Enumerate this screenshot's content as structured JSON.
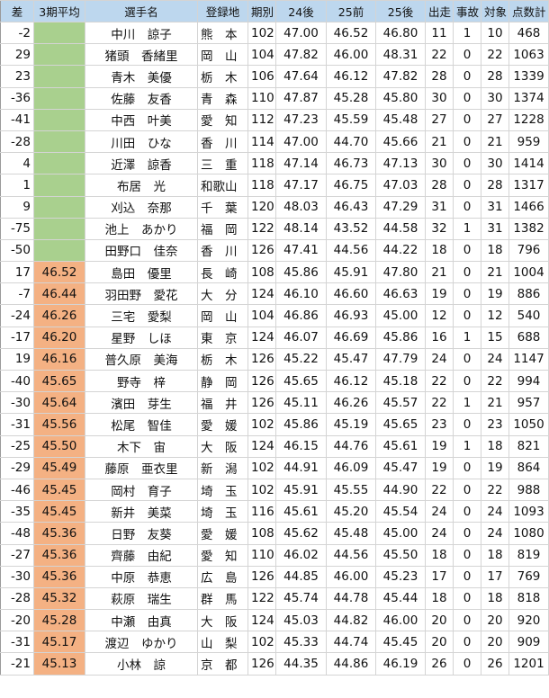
{
  "colors": {
    "header_bg": "#bdd7ee",
    "avg_empty": "#a9d08e",
    "avg_filled": "#f4b183"
  },
  "headers": [
    "差",
    "3期平均",
    "選手名",
    "登録地",
    "期別",
    "24後",
    "25前",
    "25後",
    "出走",
    "事故",
    "対象",
    "点数計"
  ],
  "rows": [
    [
      "-2",
      "",
      "中川　諒子",
      "熊　本",
      "102",
      "47.00",
      "46.52",
      "46.80",
      "11",
      "1",
      "10",
      "468"
    ],
    [
      "29",
      "",
      "猪頭　香緒里",
      "岡　山",
      "104",
      "47.82",
      "46.00",
      "48.31",
      "22",
      "0",
      "22",
      "1063"
    ],
    [
      "23",
      "",
      "青木　美優",
      "栃　木",
      "106",
      "47.64",
      "46.12",
      "47.82",
      "28",
      "0",
      "28",
      "1339"
    ],
    [
      "-36",
      "",
      "佐藤　友香",
      "青　森",
      "110",
      "47.87",
      "45.28",
      "45.80",
      "30",
      "0",
      "30",
      "1374"
    ],
    [
      "-41",
      "",
      "中西　叶美",
      "愛　知",
      "112",
      "47.23",
      "45.59",
      "45.48",
      "27",
      "0",
      "27",
      "1228"
    ],
    [
      "-28",
      "",
      "川田　ひな",
      "香　川",
      "114",
      "47.00",
      "44.70",
      "45.66",
      "21",
      "0",
      "21",
      "959"
    ],
    [
      "4",
      "",
      "近澤　諒香",
      "三　重",
      "118",
      "47.14",
      "46.73",
      "47.13",
      "30",
      "0",
      "30",
      "1414"
    ],
    [
      "1",
      "",
      "布居　光",
      "和歌山",
      "118",
      "47.17",
      "46.75",
      "47.03",
      "28",
      "0",
      "28",
      "1317"
    ],
    [
      "9",
      "",
      "刈込　奈那",
      "千　葉",
      "120",
      "48.03",
      "46.43",
      "47.29",
      "31",
      "0",
      "31",
      "1466"
    ],
    [
      "-75",
      "",
      "池上　あかり",
      "福　岡",
      "122",
      "48.14",
      "43.52",
      "44.58",
      "32",
      "1",
      "31",
      "1382"
    ],
    [
      "-50",
      "",
      "田野口　佳奈",
      "香　川",
      "126",
      "47.41",
      "44.56",
      "44.22",
      "18",
      "0",
      "18",
      "796"
    ],
    [
      "17",
      "46.52",
      "島田　優里",
      "長　崎",
      "108",
      "45.86",
      "45.91",
      "47.80",
      "21",
      "0",
      "21",
      "1004"
    ],
    [
      "-7",
      "46.44",
      "羽田野　愛花",
      "大　分",
      "124",
      "46.10",
      "46.60",
      "46.63",
      "19",
      "0",
      "19",
      "886"
    ],
    [
      "-24",
      "46.26",
      "三宅　愛梨",
      "岡　山",
      "104",
      "46.86",
      "46.93",
      "45.00",
      "12",
      "0",
      "12",
      "540"
    ],
    [
      "-17",
      "46.20",
      "星野　しほ",
      "東　京",
      "124",
      "46.07",
      "46.69",
      "45.86",
      "16",
      "1",
      "15",
      "688"
    ],
    [
      "19",
      "46.16",
      "普久原　美海",
      "栃　木",
      "126",
      "45.22",
      "45.47",
      "47.79",
      "24",
      "0",
      "24",
      "1147"
    ],
    [
      "-40",
      "45.65",
      "野寺　梓",
      "静　岡",
      "126",
      "45.65",
      "46.12",
      "45.18",
      "22",
      "0",
      "22",
      "994"
    ],
    [
      "-30",
      "45.64",
      "濱田　芽生",
      "福　井",
      "126",
      "45.11",
      "46.26",
      "45.57",
      "22",
      "1",
      "21",
      "957"
    ],
    [
      "-31",
      "45.56",
      "松尾　智佳",
      "愛　媛",
      "102",
      "45.86",
      "45.19",
      "45.65",
      "23",
      "0",
      "23",
      "1050"
    ],
    [
      "-25",
      "45.50",
      "木下　宙",
      "大　阪",
      "124",
      "46.15",
      "44.76",
      "45.61",
      "19",
      "1",
      "18",
      "821"
    ],
    [
      "-29",
      "45.49",
      "藤原　亜衣里",
      "新　潟",
      "102",
      "44.91",
      "46.09",
      "45.47",
      "19",
      "0",
      "19",
      "864"
    ],
    [
      "-46",
      "45.45",
      "岡村　育子",
      "埼　玉",
      "102",
      "45.91",
      "45.55",
      "44.90",
      "22",
      "0",
      "22",
      "988"
    ],
    [
      "-35",
      "45.45",
      "新井　美菜",
      "埼　玉",
      "116",
      "45.61",
      "45.20",
      "45.54",
      "24",
      "0",
      "24",
      "1093"
    ],
    [
      "-48",
      "45.36",
      "日野　友葵",
      "愛　媛",
      "108",
      "45.62",
      "45.48",
      "45.00",
      "24",
      "0",
      "24",
      "1080"
    ],
    [
      "-27",
      "45.36",
      "齊藤　由紀",
      "愛　知",
      "110",
      "46.02",
      "44.56",
      "45.50",
      "18",
      "0",
      "18",
      "819"
    ],
    [
      "-30",
      "45.36",
      "中原　恭恵",
      "広　島",
      "126",
      "44.85",
      "46.00",
      "45.23",
      "17",
      "0",
      "17",
      "769"
    ],
    [
      "-28",
      "45.32",
      "萩原　瑞生",
      "群　馬",
      "122",
      "45.74",
      "44.78",
      "45.44",
      "18",
      "0",
      "18",
      "818"
    ],
    [
      "-20",
      "45.28",
      "中瀬　由真",
      "大　阪",
      "124",
      "45.03",
      "44.82",
      "46.00",
      "20",
      "0",
      "20",
      "920"
    ],
    [
      "-31",
      "45.17",
      "渡辺　ゆかり",
      "山　梨",
      "102",
      "45.33",
      "44.74",
      "45.45",
      "20",
      "0",
      "20",
      "909"
    ],
    [
      "-21",
      "45.13",
      "小林　諒",
      "京　都",
      "126",
      "44.35",
      "44.86",
      "46.19",
      "26",
      "0",
      "26",
      "1201"
    ]
  ]
}
